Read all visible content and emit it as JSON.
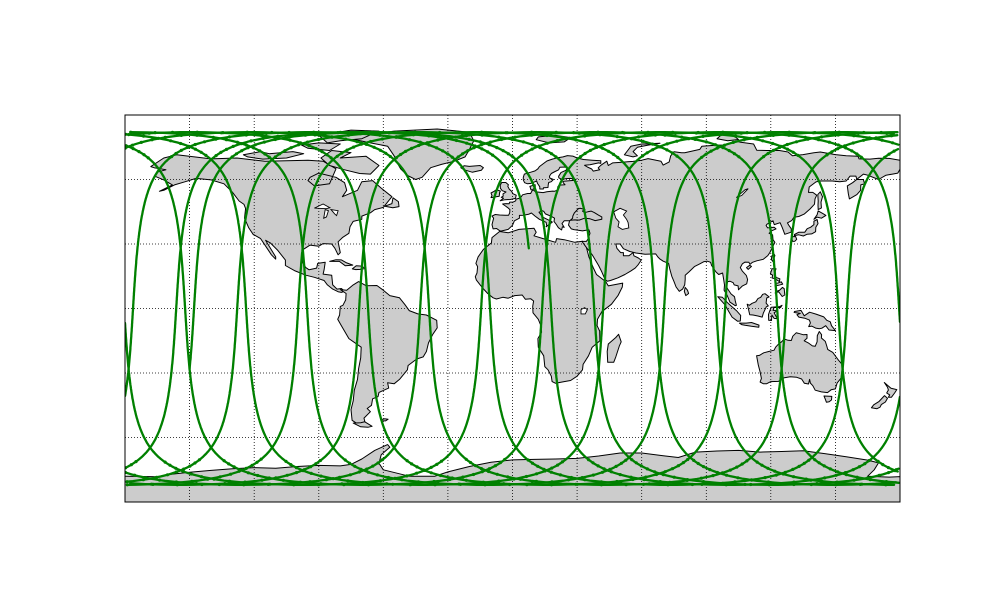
{
  "map": {
    "projection": "equirectangular",
    "lon_range": [
      -180,
      180
    ],
    "lat_range": [
      -90,
      90
    ],
    "grid": {
      "visible": true,
      "style": "dotted",
      "lon_step": 30,
      "lat_step": 30
    },
    "land_color": "#cccccc",
    "ocean_color": "#ffffff",
    "coastline_color": "#000000"
  },
  "ground_track": {
    "color": "#008000",
    "inclination_deg": 82,
    "orbit_period_min": 113,
    "num_orbits": 13.5,
    "start_longitude_deg": -150,
    "start_latitude_deg": -28,
    "start_direction": "northbound",
    "end_longitude_deg": 14,
    "end_latitude_deg": -58
  }
}
